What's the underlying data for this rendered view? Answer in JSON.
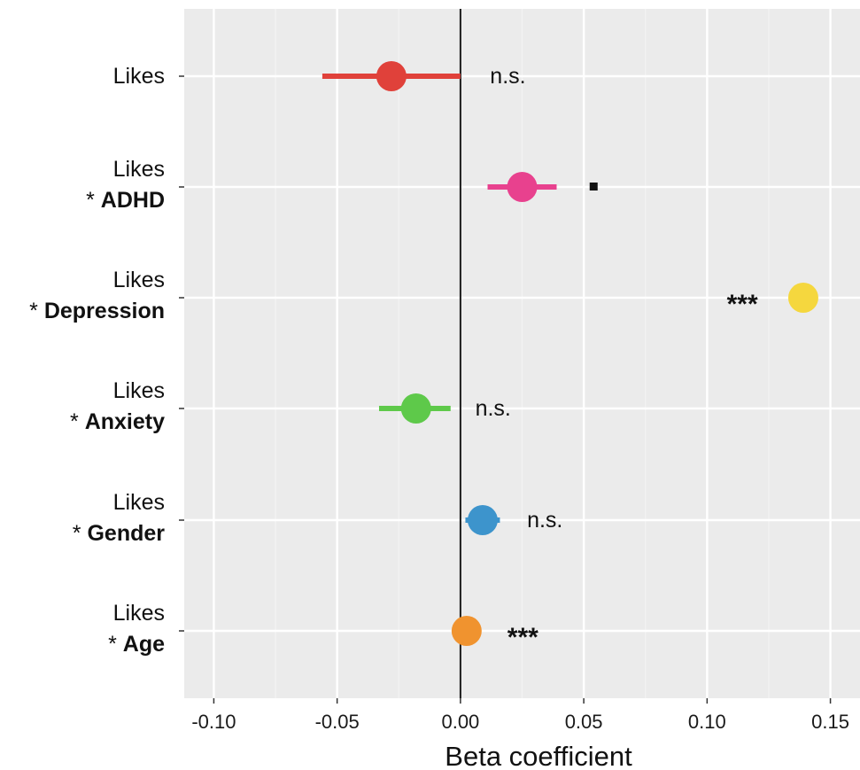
{
  "chart_data": {
    "type": "scatter",
    "xlabel": "Beta coefficient",
    "xlim": [
      -0.112,
      0.162
    ],
    "x_ticks": [
      "-0.10",
      "-0.05",
      "0.00",
      "0.05",
      "0.10",
      "0.15"
    ],
    "x_tick_values": [
      -0.1,
      -0.05,
      0.0,
      0.05,
      0.1,
      0.15
    ],
    "reference_line": 0.0,
    "grid": true,
    "rows": [
      {
        "label_line1": "Likes",
        "label_line2_prefix": "",
        "label_line2_bold": "",
        "estimate": -0.028,
        "ci_low": -0.056,
        "ci_high": 0.0,
        "color": "#e0413a",
        "significance": "n.s.",
        "sig_style": "ns",
        "sig_x": 0.012
      },
      {
        "label_line1": "Likes",
        "label_line2_prefix": "* ",
        "label_line2_bold": "ADHD",
        "estimate": 0.025,
        "ci_low": 0.011,
        "ci_high": 0.039,
        "color": "#e8418e",
        "significance": "▪",
        "sig_style": "square",
        "sig_x": 0.054
      },
      {
        "label_line1": "Likes",
        "label_line2_prefix": "* ",
        "label_line2_bold": "Depression",
        "estimate": 0.139,
        "ci_low": 0.139,
        "ci_high": 0.139,
        "color": "#f5d73e",
        "significance": "***",
        "sig_style": "star",
        "sig_x": 0.108
      },
      {
        "label_line1": "Likes",
        "label_line2_prefix": "* ",
        "label_line2_bold": "Anxiety",
        "estimate": -0.018,
        "ci_low": -0.033,
        "ci_high": -0.004,
        "color": "#5ec94a",
        "significance": "n.s.",
        "sig_style": "ns",
        "sig_x": 0.006
      },
      {
        "label_line1": "Likes",
        "label_line2_prefix": "* ",
        "label_line2_bold": "Gender",
        "estimate": 0.009,
        "ci_low": 0.002,
        "ci_high": 0.016,
        "color": "#3d94cc",
        "significance": "n.s.",
        "sig_style": "ns",
        "sig_x": 0.027
      },
      {
        "label_line1": "Likes",
        "label_line2_prefix": "* ",
        "label_line2_bold": "Age",
        "estimate": 0.0025,
        "ci_low": 0.0025,
        "ci_high": 0.0025,
        "color": "#f0932f",
        "significance": "***",
        "sig_style": "star",
        "sig_x": 0.019
      }
    ]
  },
  "colors": {
    "panel_bg": "#ebebeb",
    "grid_major": "#ffffff",
    "grid_minor": "#f3f3f3",
    "zero_line": "#1a1a1a"
  }
}
